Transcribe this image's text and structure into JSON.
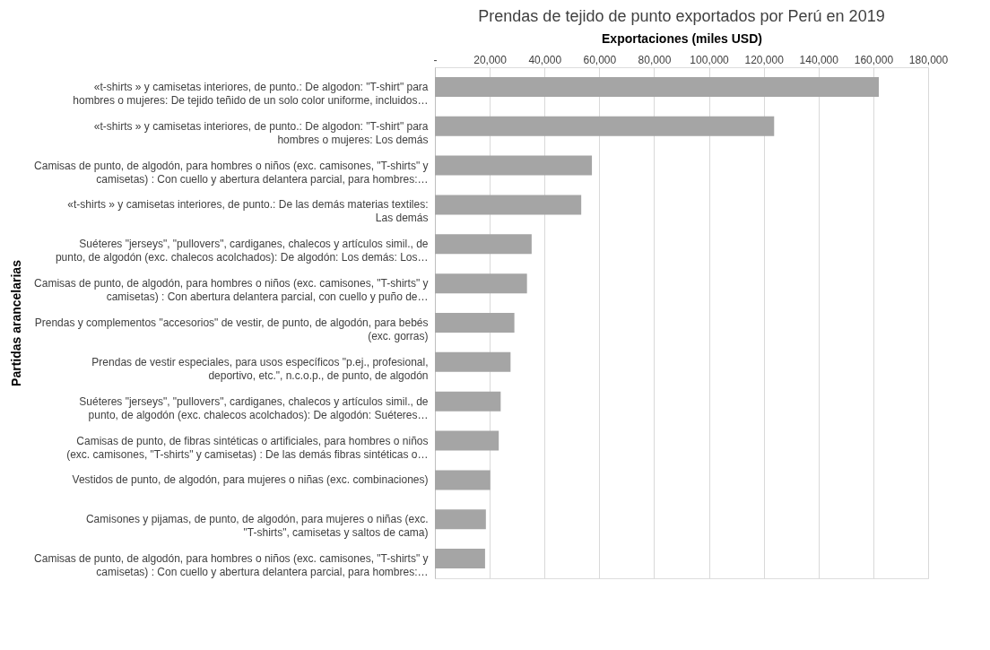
{
  "chart_data": {
    "type": "bar",
    "orientation": "horizontal",
    "title": "Prendas de tejido de punto exportados por Perú en 2019",
    "xlabel": "Exportaciones (miles USD)",
    "ylabel": "Partidas arancelarias",
    "categories": [
      "«t-shirts » y camisetas interiores, de punto.: De algodon: \"T-shirt\" para hombres o mujeres: De tejido teñido de un solo color uniforme, incluidos…",
      "«t-shirts » y camisetas interiores, de punto.: De algodon: \"T-shirt\" para hombres o mujeres: Los demás",
      "Camisas de punto, de algodón, para hombres o niños (exc. camisones, \"T-shirts\" y camisetas) : Con cuello y abertura delantera parcial, para hombres:…",
      "«t-shirts » y camisetas interiores, de punto.: De las demás materias textiles: Las demás",
      "Suéteres \"jerseys\", \"pullovers\", cardiganes, chalecos y artículos simil., de punto, de algodón (exc. chalecos acolchados): De algodón: Los demás: Los…",
      "Camisas de punto, de algodón, para hombres o niños (exc. camisones, \"T-shirts\" y camisetas) : Con abertura delantera parcial, con cuello y puño de…",
      "Prendas y complementos \"accesorios\" de vestir, de punto, de algodón, para bebés (exc. gorras)",
      "Prendas de vestir especiales, para usos específicos \"p.ej., profesional, deportivo, etc.\", n.c.o.p., de punto, de algodón",
      "Suéteres \"jerseys\", \"pullovers\", cardiganes, chalecos y artículos simil., de punto, de algodón (exc. chalecos acolchados): De algodón: Suéteres…",
      "Camisas de punto, de fibras sintéticas o artificiales, para hombres o niños (exc. camisones, \"T-shirts\" y camisetas) : De las demás fibras sintéticas o…",
      "Vestidos de punto, de algodón, para mujeres o niñas (exc. combinaciones)",
      "Camisones y pijamas, de punto, de algodón, para mujeres o niñas (exc. \"T-shirts\", camisetas y saltos de cama)",
      "Camisas de punto, de algodón, para hombres o niños (exc. camisones, \"T-shirts\" y camisetas) : Con cuello y abertura delantera parcial, para hombres:…"
    ],
    "values": [
      162000,
      123800,
      57300,
      53400,
      35300,
      33600,
      29000,
      27600,
      24000,
      23300,
      20200,
      18600,
      18300
    ],
    "color": "#a5a5a5",
    "xlim": [
      0,
      180000
    ],
    "xticks": [
      {
        "value": 0,
        "label": "-"
      },
      {
        "value": 20000,
        "label": "20,000"
      },
      {
        "value": 40000,
        "label": "40,000"
      },
      {
        "value": 60000,
        "label": "60,000"
      },
      {
        "value": 80000,
        "label": "80,000"
      },
      {
        "value": 100000,
        "label": "100,000"
      },
      {
        "value": 120000,
        "label": "120,000"
      },
      {
        "value": 140000,
        "label": "140,000"
      },
      {
        "value": 160000,
        "label": "160,000"
      },
      {
        "value": 180000,
        "label": "180,000"
      }
    ],
    "grid": "x"
  }
}
